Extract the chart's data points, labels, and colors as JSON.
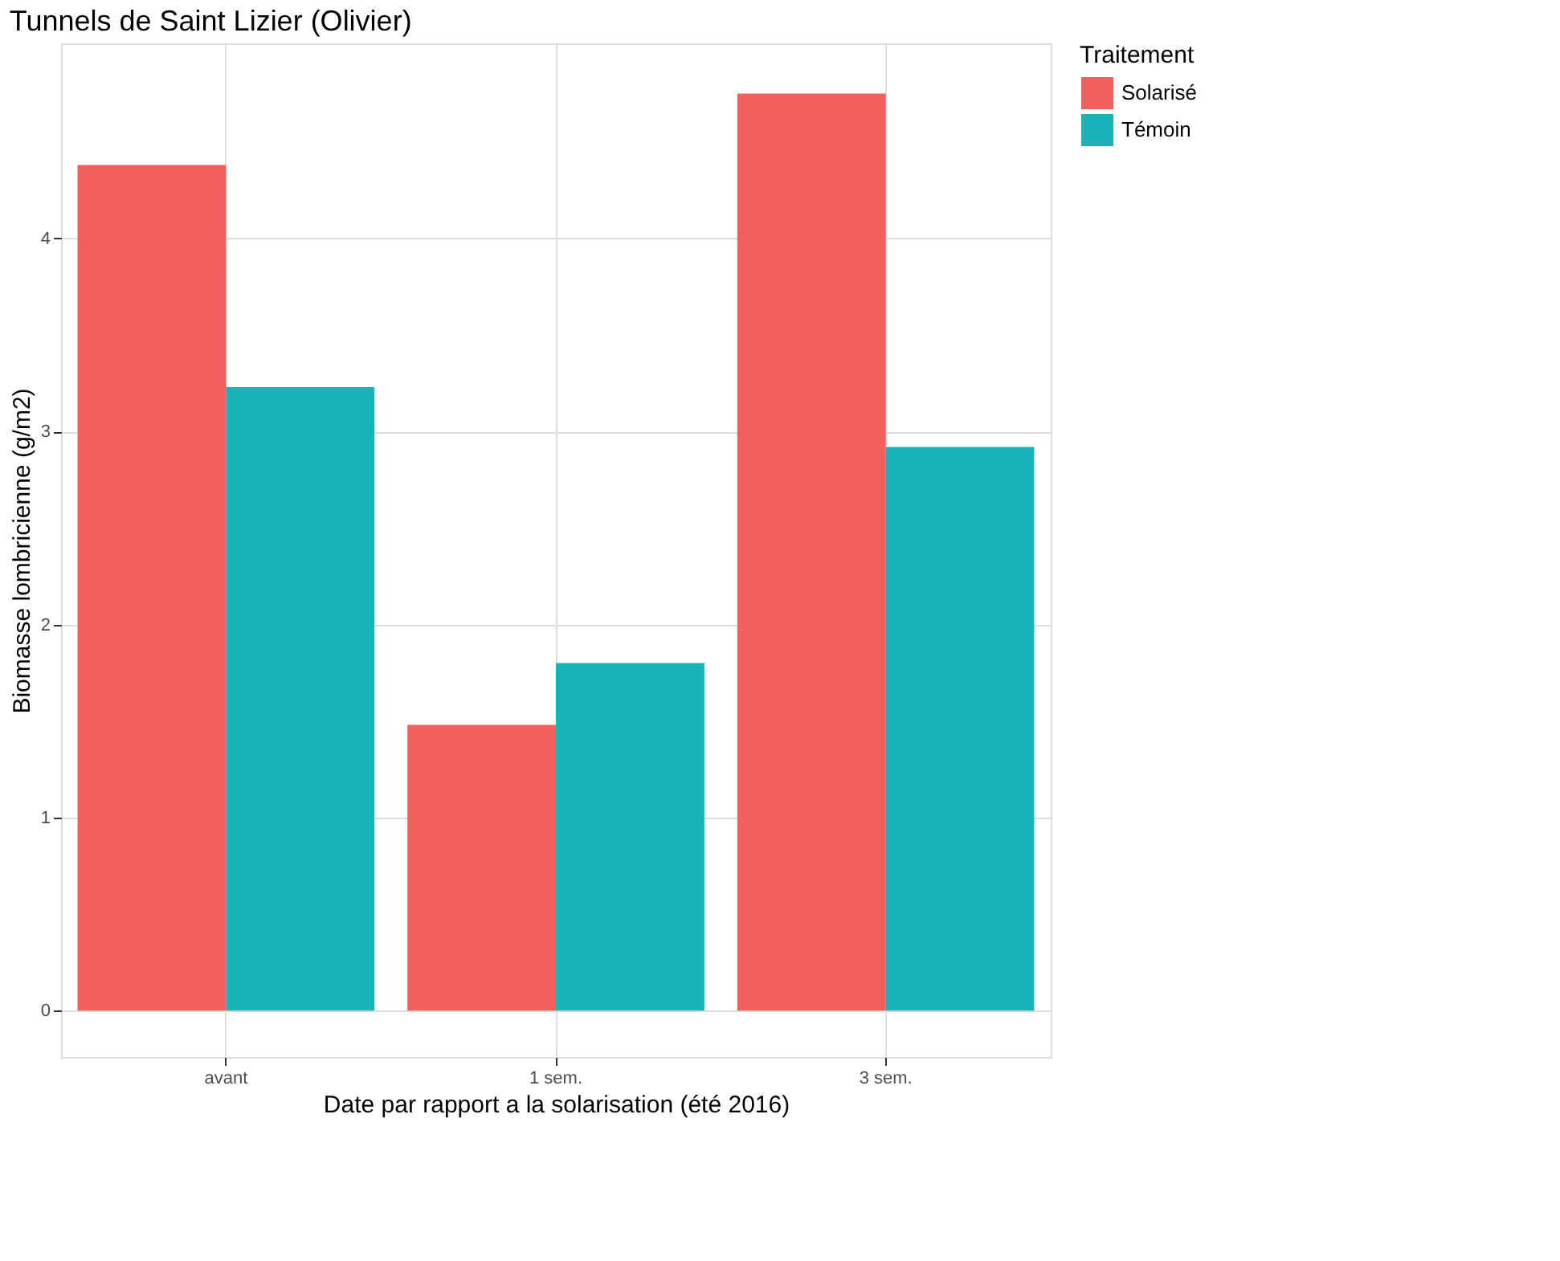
{
  "chart_data": {
    "type": "bar",
    "title": "Tunnels de Saint Lizier (Olivier)",
    "xlabel": "Date par rapport a la solarisation (été 2016)",
    "ylabel": "Biomasse lombricienne (g/m2)",
    "legend_title": "Traitement",
    "categories": [
      "avant",
      "1 sem.",
      "3 sem."
    ],
    "series": [
      {
        "name": "Solarisé",
        "color": "#f25f5c",
        "values": [
          4.38,
          1.48,
          4.75
        ]
      },
      {
        "name": "Témoin",
        "color": "#17b3b8",
        "values": [
          3.23,
          1.8,
          2.92
        ]
      }
    ],
    "ylim": [
      -0.24,
      5.01
    ],
    "yticks": [
      0,
      1,
      2,
      3,
      4
    ],
    "grid": true,
    "legend": "right"
  }
}
